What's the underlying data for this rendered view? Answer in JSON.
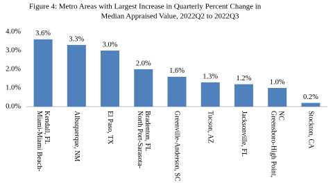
{
  "chart_data": {
    "type": "bar",
    "title": [
      "Figure 4:  Metro Areas with Largest Increase in Quarterly Percent Change in",
      "Median Appraised Value, 2022Q2  to 2022Q3"
    ],
    "categories": [
      "Miami-Miami Beach-Kendall, FL",
      "Albuquerque, NM",
      "El Paso, TX",
      "North Port-Sarasota-Bradenton, FL",
      "Greenville-Anderson, SC",
      "Tucson, AZ",
      "Jacksonville, FL",
      "Greensboro-High Point, NC",
      "Stockton, CA"
    ],
    "values": [
      3.6,
      3.3,
      3.0,
      2.0,
      1.6,
      1.3,
      1.2,
      1.0,
      0.2
    ],
    "value_labels": [
      "3.6%",
      "3.3%",
      "3.0%",
      "2.0%",
      "1.6%",
      "1.3%",
      "1.2%",
      "1.0%",
      "0.2%"
    ],
    "color": "#4f81bd",
    "ylim": [
      0,
      4
    ],
    "yticks": [
      {
        "value": 0,
        "label": "0.0%"
      },
      {
        "value": 1,
        "label": "1.0%"
      },
      {
        "value": 2,
        "label": "2.0%"
      },
      {
        "value": 3,
        "label": "3.0%"
      },
      {
        "value": 4,
        "label": "4.0%"
      }
    ],
    "grid": false
  }
}
